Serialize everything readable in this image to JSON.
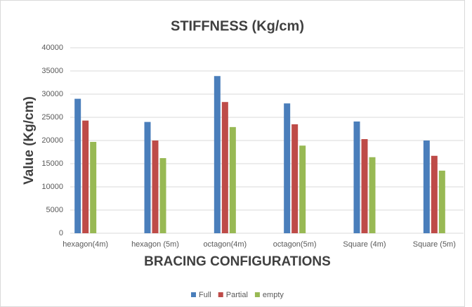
{
  "chart_data": {
    "type": "bar",
    "title": "STIFFNESS (Kg/cm)",
    "x_label": "BRACING CONFIGURATIONS",
    "y_label": "Value (Kg/cm)",
    "categories": [
      "hexagon(4m)",
      "hexagon (5m)",
      "octagon(4m)",
      "octagon(5m)",
      "Square (4m)",
      "Square (5m)"
    ],
    "series": [
      {
        "name": "Full",
        "color": "#4a7ebb",
        "values": [
          29000,
          24000,
          33900,
          28000,
          24100,
          20000
        ]
      },
      {
        "name": "Partial",
        "color": "#be4b48",
        "values": [
          24300,
          20000,
          28300,
          23500,
          20300,
          16700
        ]
      },
      {
        "name": "empty",
        "color": "#98b954",
        "values": [
          19700,
          16200,
          22900,
          18900,
          16400,
          13500
        ]
      }
    ],
    "ylim": [
      0,
      40000
    ],
    "yticks": [
      0,
      5000,
      10000,
      15000,
      20000,
      25000,
      30000,
      35000,
      40000
    ],
    "grid": true,
    "legend": "bottom"
  }
}
